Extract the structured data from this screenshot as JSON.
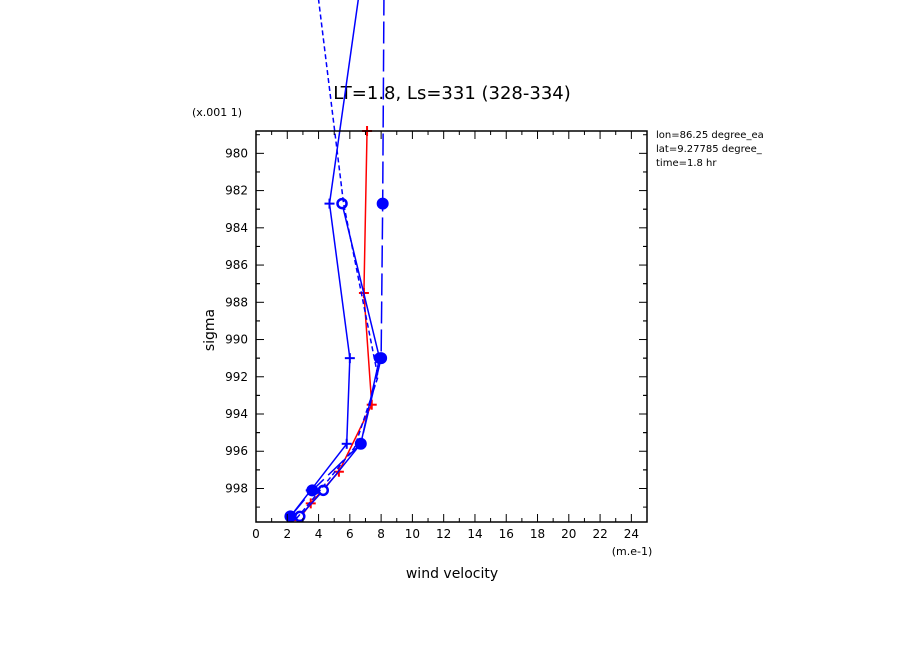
{
  "chart_data": {
    "type": "line",
    "title": "LT=1.8, Ls=331 (328-334)",
    "xlabel": "wind velocity",
    "ylabel": "sigma",
    "x_unit": "(m.e-1)",
    "y_unit": "(x.001 1)",
    "xlim": [
      0,
      25
    ],
    "ylim": [
      999.8,
      978.8
    ],
    "x_ticks": [
      "0",
      "2",
      "4",
      "6",
      "8",
      "10",
      "12",
      "14",
      "16",
      "18",
      "20",
      "22",
      "24"
    ],
    "y_ticks": [
      "980",
      "982",
      "984",
      "986",
      "988",
      "990",
      "992",
      "994",
      "996",
      "998"
    ],
    "grid": false,
    "info": [
      "lon=86.25 degree_ea",
      "lat=9.27785 degree_",
      "time=1.8 hr"
    ],
    "colors": {
      "red": "#ff0000",
      "blue": "#0000ff"
    },
    "series": [
      {
        "color": "#ff0000",
        "style": "solid",
        "marker": "plus",
        "points": [
          [
            2.7,
            999.7
          ],
          [
            3.5,
            998.8
          ],
          [
            5.3,
            997.1
          ],
          [
            7.4,
            993.5
          ],
          [
            6.9,
            987.5
          ],
          [
            7.1,
            978.8
          ]
        ]
      },
      {
        "color": "#0000ff",
        "style": "solid",
        "marker": "plus",
        "points": [
          [
            2.2,
            999.5
          ],
          [
            3.5,
            998.1
          ],
          [
            5.8,
            995.6
          ],
          [
            6.0,
            991.0
          ],
          [
            4.7,
            982.7
          ],
          [
            7.0,
            969.0
          ]
        ]
      },
      {
        "color": "#0000ff",
        "style": "solid",
        "marker": "circle",
        "points": [
          [
            2.8,
            999.5
          ],
          [
            4.3,
            998.1
          ],
          [
            6.7,
            995.6
          ],
          [
            7.9,
            991.0
          ],
          [
            5.5,
            982.7
          ]
        ]
      },
      {
        "color": "#0000ff",
        "style": "longdash",
        "marker": "filled-circle",
        "points": [
          [
            2.2,
            999.5
          ],
          [
            3.6,
            998.1
          ],
          [
            6.7,
            995.6
          ],
          [
            8.0,
            991.0
          ],
          [
            8.1,
            982.7
          ],
          [
            8.2,
            969.0
          ]
        ]
      },
      {
        "color": "#0000ff",
        "style": "dashed",
        "marker": "none",
        "points": [
          [
            2.6,
            999.6
          ],
          [
            4.0,
            998.2
          ],
          [
            6.3,
            995.8
          ],
          [
            7.8,
            992.0
          ],
          [
            5.6,
            982.7
          ],
          [
            3.6,
            969.0
          ]
        ]
      }
    ]
  }
}
